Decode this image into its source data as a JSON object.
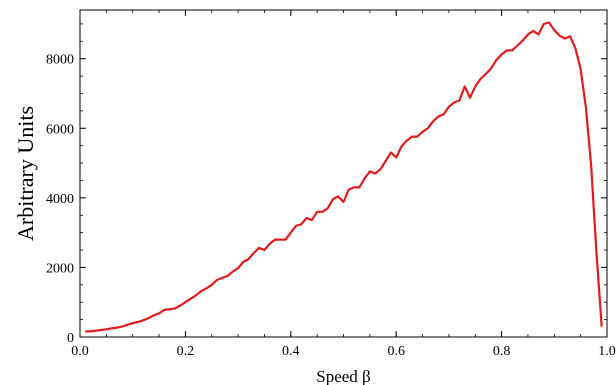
{
  "chart_data": {
    "type": "line",
    "title": "",
    "xlabel": "Speed β",
    "ylabel": "Arbitrary Units",
    "xlim": [
      0.0,
      1.0
    ],
    "ylim": [
      0,
      9400
    ],
    "x_ticks": [
      "0.0",
      "0.2",
      "0.4",
      "0.6",
      "0.8",
      "1.0"
    ],
    "y_ticks": [
      "0",
      "2000",
      "4000",
      "6000",
      "8000"
    ],
    "grid": false,
    "legend": "none",
    "series": [
      {
        "color": "#e41a1c",
        "x": [
          0.01,
          0.02,
          0.03,
          0.04,
          0.05,
          0.06,
          0.07,
          0.08,
          0.09,
          0.1,
          0.11,
          0.12,
          0.13,
          0.14,
          0.15,
          0.16,
          0.17,
          0.18,
          0.19,
          0.2,
          0.21,
          0.22,
          0.23,
          0.24,
          0.25,
          0.26,
          0.27,
          0.28,
          0.29,
          0.3,
          0.31,
          0.32,
          0.33,
          0.34,
          0.35,
          0.36,
          0.37,
          0.38,
          0.39,
          0.4,
          0.41,
          0.42,
          0.43,
          0.44,
          0.45,
          0.46,
          0.47,
          0.48,
          0.49,
          0.5,
          0.51,
          0.52,
          0.53,
          0.54,
          0.55,
          0.56,
          0.57,
          0.58,
          0.59,
          0.6,
          0.61,
          0.62,
          0.63,
          0.64,
          0.65,
          0.66,
          0.67,
          0.68,
          0.69,
          0.7,
          0.71,
          0.72,
          0.73,
          0.74,
          0.75,
          0.76,
          0.77,
          0.78,
          0.79,
          0.8,
          0.81,
          0.82,
          0.83,
          0.84,
          0.85,
          0.86,
          0.87,
          0.88,
          0.89,
          0.9,
          0.91,
          0.92,
          0.93,
          0.94,
          0.95,
          0.96,
          0.97,
          0.98,
          0.99
        ],
        "y": [
          160,
          160,
          180,
          200,
          220,
          250,
          270,
          300,
          350,
          400,
          430,
          480,
          540,
          620,
          680,
          780,
          800,
          820,
          900,
          1000,
          1100,
          1200,
          1320,
          1400,
          1500,
          1640,
          1700,
          1760,
          1880,
          1980,
          2160,
          2240,
          2420,
          2560,
          2500,
          2680,
          2800,
          2800,
          2800,
          3000,
          3200,
          3240,
          3420,
          3360,
          3600,
          3600,
          3700,
          3960,
          4040,
          3880,
          4240,
          4300,
          4300,
          4560,
          4760,
          4700,
          4820,
          5060,
          5300,
          5160,
          5480,
          5640,
          5760,
          5760,
          5900,
          6000,
          6200,
          6340,
          6400,
          6620,
          6740,
          6800,
          7200,
          6880,
          7200,
          7420,
          7560,
          7720,
          7960,
          8120,
          8240,
          8240,
          8380,
          8520,
          8700,
          8800,
          8700,
          9000,
          9040,
          8820,
          8660,
          8580,
          8640,
          8300,
          7700,
          6600,
          4900,
          2400,
          300
        ]
      }
    ]
  }
}
